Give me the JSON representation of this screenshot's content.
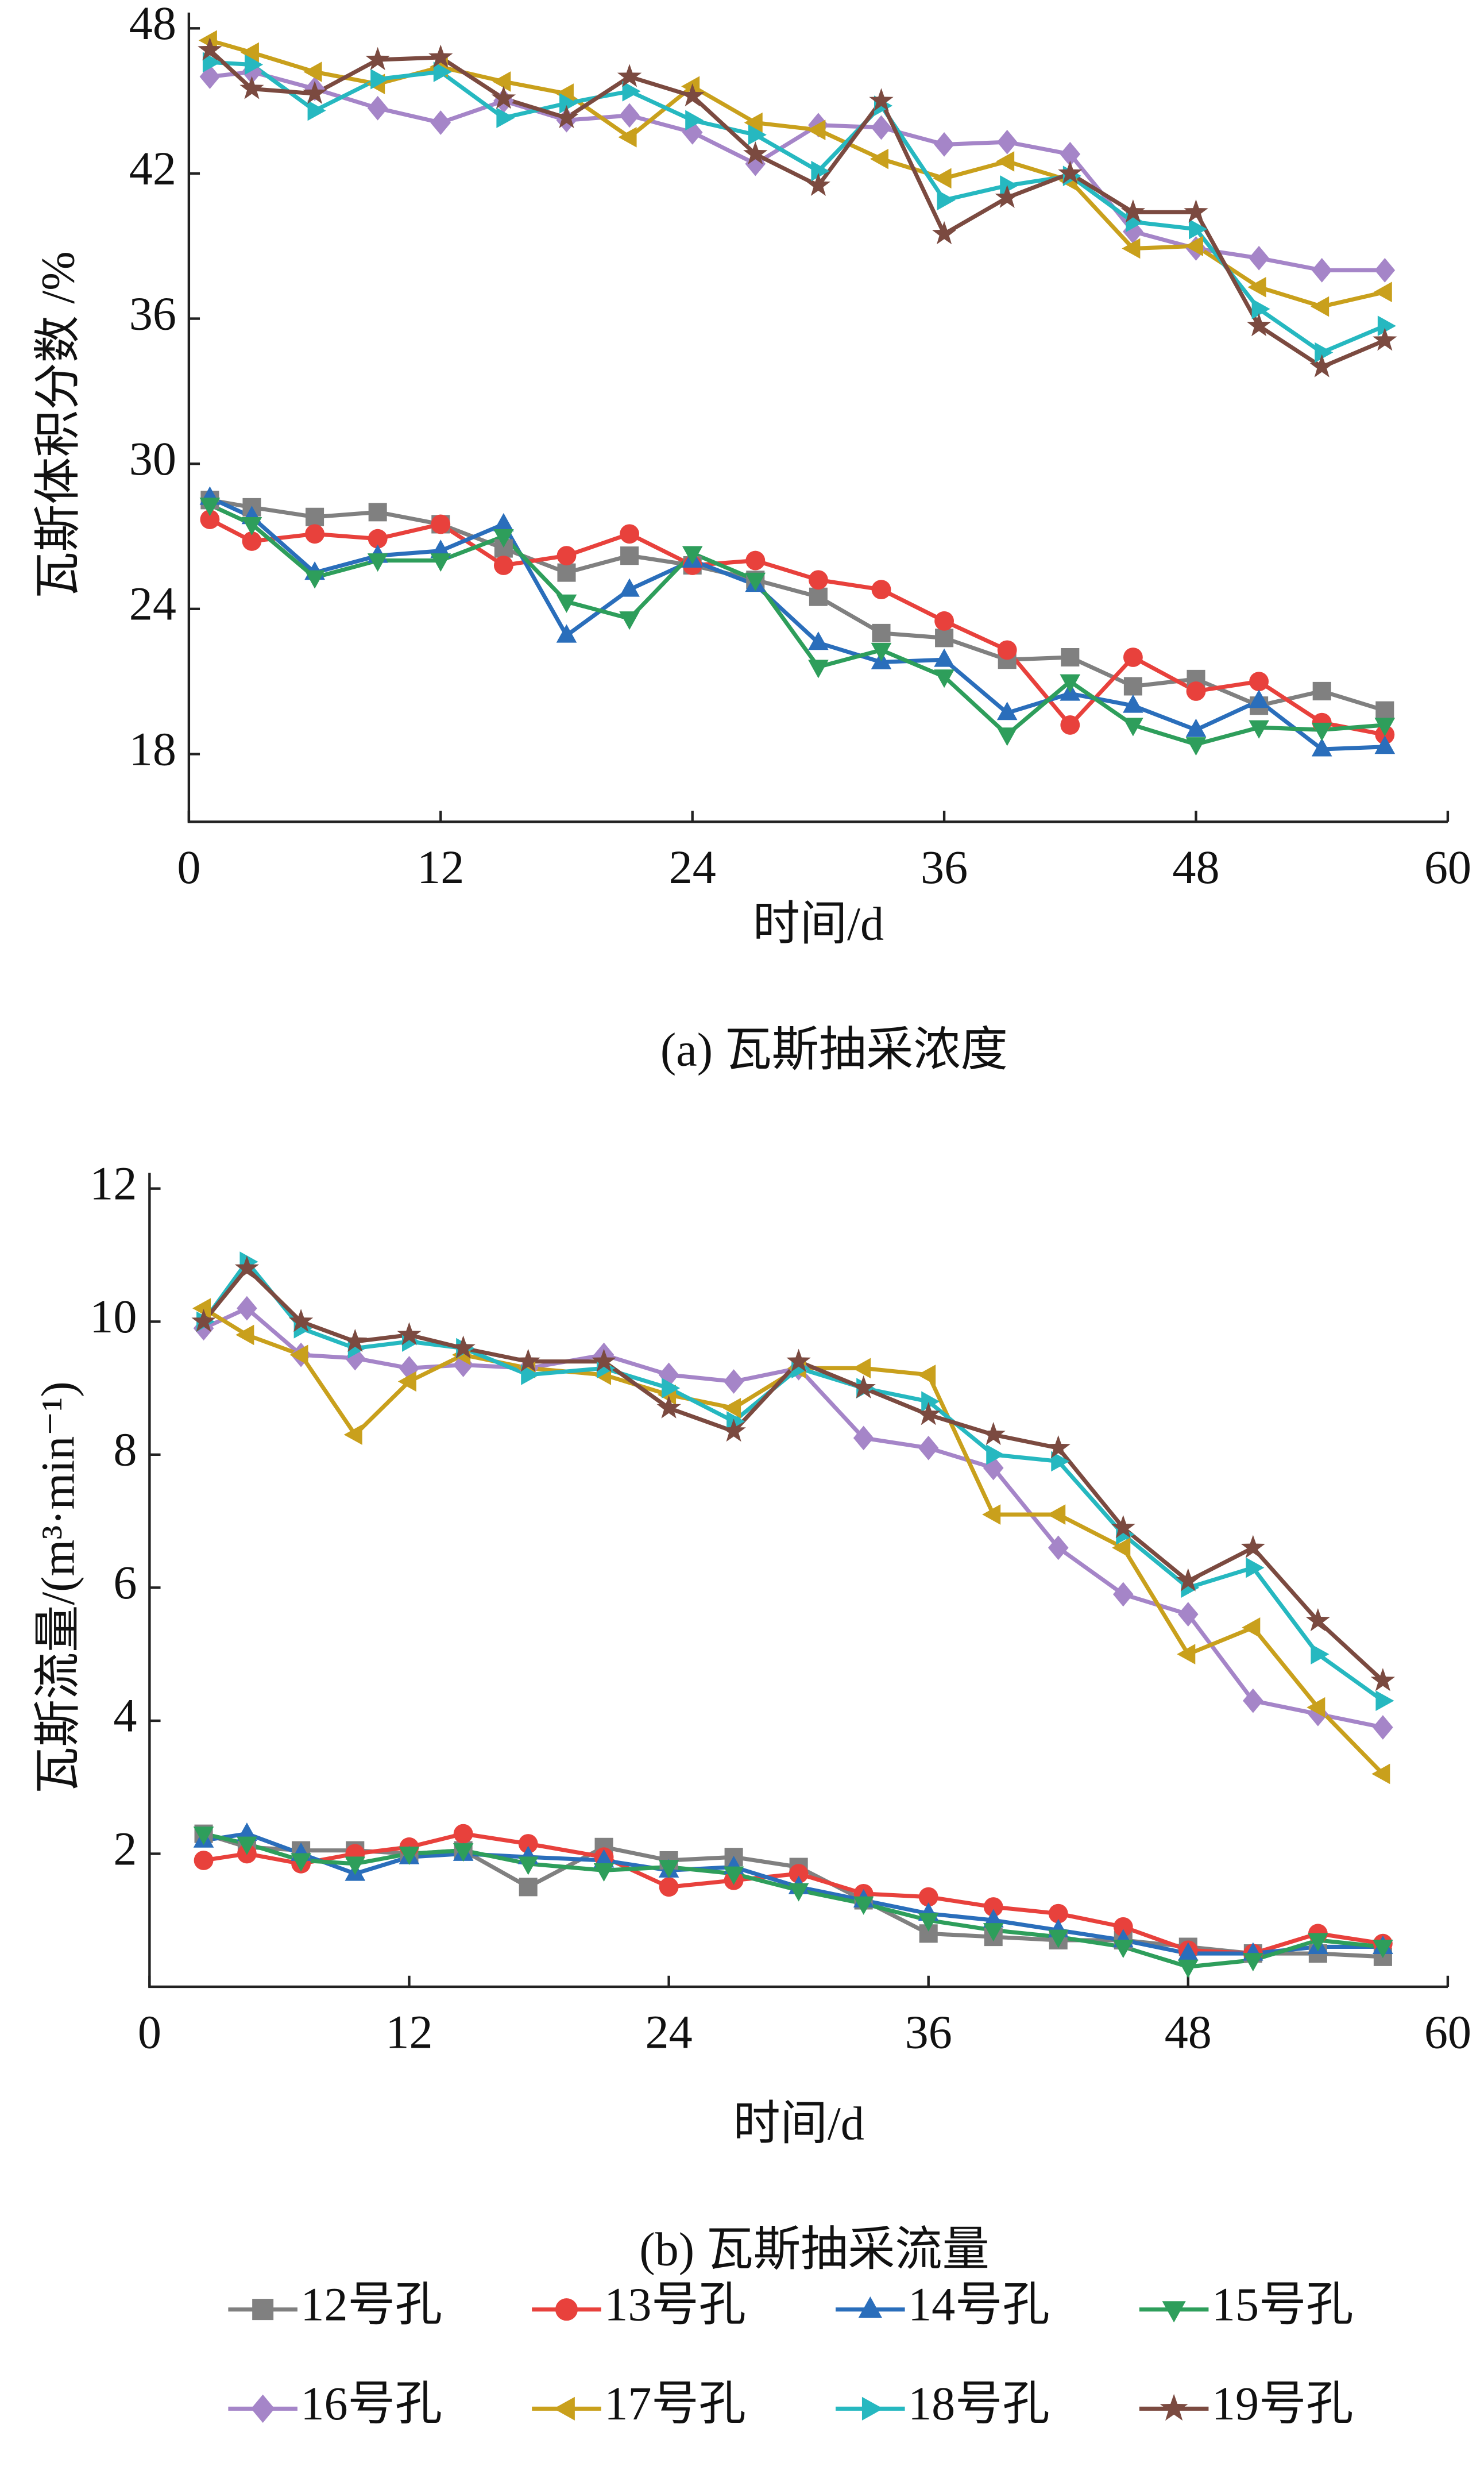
{
  "chart_data": [
    {
      "type": "line",
      "ylabel": "瓦斯体积分数 /%",
      "xlabel": "时间/d",
      "caption": "(a) 瓦斯抽采浓度",
      "xlim": [
        0,
        60
      ],
      "xticks": [
        0,
        12,
        24,
        36,
        48,
        60
      ],
      "ylim": [
        15.2,
        48
      ],
      "yticks": [
        18,
        24,
        30,
        36,
        42,
        48
      ],
      "legend": "bottom",
      "x": [
        1,
        3,
        6,
        9,
        12,
        15,
        18,
        21,
        24,
        27,
        30,
        33,
        36,
        39,
        42,
        45,
        48,
        51,
        54,
        57
      ],
      "series": [
        {
          "name": "12号孔",
          "color": "#808080",
          "marker": "square",
          "values": [
            28.5,
            28.2,
            27.8,
            28.0,
            27.5,
            26.5,
            25.5,
            26.2,
            25.8,
            25.2,
            24.5,
            23.0,
            22.8,
            21.9,
            22.0,
            20.8,
            21.1,
            20.0,
            20.6,
            19.8
          ]
        },
        {
          "name": "13号孔",
          "color": "#e8413c",
          "marker": "circle",
          "values": [
            27.7,
            26.8,
            27.1,
            26.9,
            27.5,
            25.8,
            26.2,
            27.1,
            25.8,
            26.0,
            25.2,
            24.8,
            23.5,
            22.3,
            19.2,
            22.0,
            20.6,
            21.0,
            19.3,
            18.8
          ]
        },
        {
          "name": "14号孔",
          "color": "#2a6ebb",
          "marker": "triangle-up",
          "values": [
            28.6,
            27.8,
            25.5,
            26.2,
            26.4,
            27.5,
            22.9,
            24.8,
            26.0,
            25.0,
            22.6,
            21.8,
            21.9,
            19.7,
            20.5,
            20.0,
            19.0,
            20.2,
            18.2,
            18.3
          ]
        },
        {
          "name": "15号孔",
          "color": "#2e9e5b",
          "marker": "triangle-down",
          "values": [
            28.3,
            27.5,
            25.3,
            26.0,
            26.0,
            27.0,
            24.3,
            23.6,
            26.3,
            25.2,
            21.6,
            22.3,
            21.2,
            18.8,
            21.0,
            19.2,
            18.4,
            19.1,
            19.0,
            19.2
          ]
        },
        {
          "name": "16号孔",
          "color": "#a585c8",
          "marker": "diamond",
          "values": [
            46.0,
            46.2,
            45.5,
            44.7,
            44.1,
            45.0,
            44.2,
            44.4,
            43.7,
            42.4,
            44.0,
            43.9,
            43.2,
            43.3,
            42.8,
            39.6,
            38.9,
            38.5,
            38.0,
            38.0
          ]
        },
        {
          "name": "17号孔",
          "color": "#c9a01c",
          "marker": "triangle-left",
          "values": [
            47.5,
            47.0,
            46.2,
            45.7,
            46.4,
            45.8,
            45.3,
            43.5,
            45.6,
            44.1,
            43.8,
            42.6,
            41.8,
            42.5,
            41.7,
            38.9,
            39.0,
            37.3,
            36.5,
            37.1
          ]
        },
        {
          "name": "18号孔",
          "color": "#26b8c0",
          "marker": "triangle-right",
          "values": [
            46.6,
            46.5,
            44.6,
            45.9,
            46.2,
            44.3,
            44.9,
            45.4,
            44.2,
            43.6,
            42.1,
            44.8,
            40.9,
            41.5,
            41.9,
            40.0,
            39.7,
            36.4,
            34.6,
            35.7
          ]
        },
        {
          "name": "19号孔",
          "color": "#7b4a40",
          "marker": "star",
          "values": [
            47.1,
            45.5,
            45.3,
            46.7,
            46.8,
            45.1,
            44.3,
            46.0,
            45.2,
            42.8,
            41.5,
            45.0,
            39.5,
            41.0,
            42.0,
            40.4,
            40.4,
            35.7,
            34.0,
            35.1
          ]
        }
      ]
    },
    {
      "type": "line",
      "ylabel": "瓦斯流量/(m³·min⁻¹)",
      "xlabel": "时间/d",
      "caption": "(b) 瓦斯抽采流量",
      "xlim": [
        0,
        60
      ],
      "xticks": [
        0,
        12,
        24,
        36,
        48,
        60
      ],
      "ylim": [
        0,
        12
      ],
      "yticks": [
        2,
        4,
        6,
        8,
        10,
        12
      ],
      "x": [
        2.5,
        4.5,
        7,
        9.5,
        12,
        14.5,
        17.5,
        21,
        24,
        27,
        30,
        33,
        36,
        39,
        42,
        45,
        48,
        51,
        54,
        57
      ],
      "series": [
        {
          "color": "#808080",
          "marker": "square",
          "values": [
            2.3,
            2.1,
            2.05,
            2.05,
            2.0,
            2.05,
            1.5,
            2.1,
            1.9,
            1.95,
            1.8,
            1.3,
            0.8,
            0.75,
            0.7,
            0.7,
            0.6,
            0.5,
            0.5,
            0.45
          ]
        },
        {
          "color": "#e8413c",
          "marker": "circle",
          "values": [
            1.9,
            2.0,
            1.85,
            2.0,
            2.1,
            2.3,
            2.15,
            1.95,
            1.5,
            1.6,
            1.7,
            1.4,
            1.35,
            1.2,
            1.1,
            0.9,
            0.55,
            0.5,
            0.8,
            0.65
          ]
        },
        {
          "color": "#2a6ebb",
          "marker": "triangle-up",
          "values": [
            2.2,
            2.3,
            2.0,
            1.7,
            1.95,
            2.0,
            1.95,
            1.9,
            1.75,
            1.8,
            1.5,
            1.3,
            1.1,
            1.0,
            0.85,
            0.7,
            0.5,
            0.5,
            0.6,
            0.6
          ]
        },
        {
          "color": "#2e9e5b",
          "marker": "triangle-down",
          "values": [
            2.3,
            2.15,
            1.9,
            1.85,
            2.0,
            2.05,
            1.85,
            1.75,
            1.8,
            1.7,
            1.45,
            1.25,
            1.0,
            0.85,
            0.75,
            0.6,
            0.3,
            0.4,
            0.7,
            0.6
          ]
        },
        {
          "color": "#a585c8",
          "marker": "diamond",
          "values": [
            9.9,
            10.2,
            9.5,
            9.45,
            9.3,
            9.35,
            9.3,
            9.5,
            9.2,
            9.1,
            9.3,
            8.25,
            8.1,
            7.8,
            6.6,
            5.9,
            5.6,
            4.3,
            4.1,
            3.9
          ]
        },
        {
          "color": "#c9a01c",
          "marker": "triangle-left",
          "values": [
            10.2,
            9.8,
            9.5,
            8.3,
            9.1,
            9.5,
            9.3,
            9.2,
            8.9,
            8.7,
            9.3,
            9.3,
            9.2,
            7.1,
            7.1,
            6.6,
            5.0,
            5.4,
            4.2,
            3.2
          ]
        },
        {
          "color": "#26b8c0",
          "marker": "triangle-right",
          "values": [
            10.0,
            10.9,
            9.9,
            9.6,
            9.7,
            9.6,
            9.2,
            9.3,
            9.0,
            8.5,
            9.3,
            9.0,
            8.8,
            8.0,
            7.9,
            6.8,
            6.0,
            6.3,
            5.0,
            4.3
          ]
        },
        {
          "color": "#7b4a40",
          "marker": "star",
          "values": [
            10.0,
            10.8,
            10.0,
            9.7,
            9.8,
            9.6,
            9.4,
            9.4,
            8.7,
            8.35,
            9.4,
            9.0,
            8.6,
            8.3,
            8.1,
            6.9,
            6.1,
            6.6,
            5.5,
            4.6
          ]
        }
      ]
    }
  ]
}
